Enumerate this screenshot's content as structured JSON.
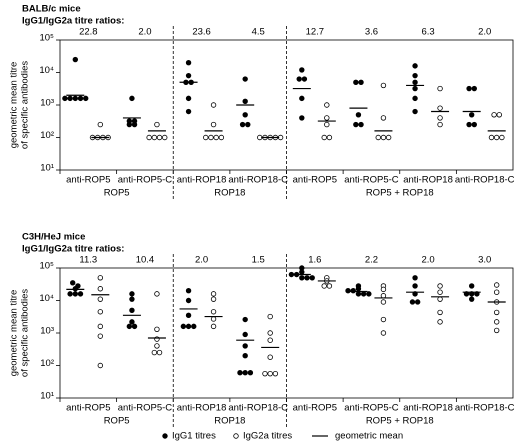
{
  "chart_data": [
    {
      "type": "dot",
      "title": "BALB/c mice",
      "ratio_title": "IgG1/IgG2a titre ratios:",
      "ratios": [
        "22.8",
        "2.0",
        "23.6",
        "4.5",
        "12.7",
        "3.6",
        "6.3",
        "2.0"
      ],
      "ylabel": [
        "geometric mean titre",
        "of specific antibodies"
      ],
      "groups": [
        {
          "name": "ROP5",
          "categories": [
            "anti-ROP5",
            "anti-ROP5-C"
          ]
        },
        {
          "name": "ROP18",
          "categories": [
            "anti-ROP18",
            "anti-ROP18-C"
          ]
        },
        {
          "name": "ROP5 + ROP18",
          "categories": [
            "anti-ROP5",
            "anti-ROP5-C",
            "anti-ROP18",
            "anti-ROP18-C"
          ]
        }
      ],
      "log_y": true,
      "ylim": [
        10,
        100000
      ],
      "yticks": [
        {
          "value": 10,
          "label": "10¹"
        },
        {
          "value": 100,
          "label": "10²"
        },
        {
          "value": 1000,
          "label": "10³"
        },
        {
          "value": 10000,
          "label": "10⁴"
        },
        {
          "value": 100000,
          "label": "10⁵"
        }
      ],
      "series": [
        {
          "name": "IgG1 titres",
          "marker": "filled",
          "color": "#000000",
          "values": [
            [
              25000,
              1600,
              1600,
              1600,
              1600,
              1600
            ],
            [
              1600,
              320,
              320,
              250,
              250
            ],
            [
              20000,
              8000,
              5000,
              5000,
              1600,
              630
            ],
            [
              6300,
              1300,
              500,
              250,
              250
            ],
            [
              12000,
              6300,
              6300,
              1600,
              400
            ],
            [
              5000,
              5000,
              500,
              250,
              250
            ],
            [
              16000,
              8000,
              5000,
              3200,
              1600,
              630
            ],
            [
              3200,
              3200,
              500,
              250,
              250
            ]
          ],
          "means": [
            2000,
            400,
            5000,
            1000,
            3200,
            800,
            4000,
            630
          ]
        },
        {
          "name": "IgG2a titres",
          "marker": "open",
          "color": "#000000",
          "values": [
            [
              250,
              100,
              100,
              100,
              100
            ],
            [
              250,
              100,
              100,
              100,
              100
            ],
            [
              1000,
              250,
              100,
              100,
              100,
              100
            ],
            [
              100,
              100,
              100,
              100,
              100
            ],
            [
              1000,
              400,
              250,
              100,
              100
            ],
            [
              4000,
              400,
              100,
              100,
              100
            ],
            [
              3200,
              800,
              400,
              250
            ],
            [
              500,
              500,
              100,
              100,
              100
            ]
          ],
          "means": [
            100,
            160,
            160,
            100,
            320,
            160,
            630,
            160
          ]
        }
      ],
      "mean_label": "geometric mean"
    },
    {
      "type": "dot",
      "title": "C3H/HeJ mice",
      "ratio_title": "IgG1/IgG2a titre ratios:",
      "ratios": [
        "11.3",
        "10.4",
        "2.0",
        "1.5",
        "1.6",
        "2.2",
        "2.0",
        "3.0"
      ],
      "ylabel": [
        "geometric mean titre",
        "of specific antibodies"
      ],
      "groups": [
        {
          "name": "ROP5",
          "categories": [
            "anti-ROP5",
            "anti-ROP5-C"
          ]
        },
        {
          "name": "ROP18",
          "categories": [
            "anti-ROP18",
            "anti-ROP18-C"
          ]
        },
        {
          "name": "ROP5 + ROP18",
          "categories": [
            "anti-ROP5",
            "anti-ROP5-C",
            "anti-ROP18",
            "anti-ROP18-C"
          ]
        }
      ],
      "log_y": true,
      "ylim": [
        10,
        100000
      ],
      "yticks": [
        {
          "value": 10,
          "label": "10¹"
        },
        {
          "value": 100,
          "label": "10²"
        },
        {
          "value": 1000,
          "label": "10³"
        },
        {
          "value": 10000,
          "label": "10⁴"
        },
        {
          "value": 100000,
          "label": "10⁵"
        }
      ],
      "series": [
        {
          "marker": "filled",
          "color": "#000000",
          "values": [
            [
              35000,
              28000,
              23000,
              16000,
              16000,
              16000
            ],
            [
              16000,
              11000,
              5000,
              2200,
              1600,
              1600
            ],
            [
              20000,
              10000,
              3500,
              1600,
              1600,
              1600
            ],
            [
              2600,
              900,
              400,
              200,
              60,
              60,
              60
            ],
            [
              100000,
              75000,
              63000,
              63000,
              50000,
              50000,
              50000
            ],
            [
              28000,
              23000,
              20000,
              20000,
              16000,
              16000,
              16000
            ],
            [
              50000,
              28000,
              16000,
              9000,
              9000
            ],
            [
              28000,
              16000,
              16000,
              16000,
              11000
            ]
          ],
          "means": [
            22000,
            3500,
            5500,
            600,
            63000,
            19000,
            18000,
            18000
          ]
        },
        {
          "marker": "open",
          "color": "#000000",
          "values": [
            [
              50000,
              23000,
              11000,
              4500,
              1600,
              800,
              100
            ],
            [
              16000,
              1300,
              650,
              400,
              250,
              250
            ],
            [
              16000,
              11000,
              4500,
              2700,
              1600
            ],
            [
              3200,
              1000,
              600,
              180,
              56,
              56,
              56
            ],
            [
              50000,
              40000,
              28000,
              28000
            ],
            [
              28000,
              22000,
              14000,
              9000,
              2600,
              1000
            ],
            [
              28000,
              18000,
              11000,
              4300,
              2200
            ],
            [
              30000,
              18000,
              9000,
              4300,
              2200,
              1200
            ]
          ],
          "means": [
            15000,
            700,
            3200,
            360,
            40000,
            12000,
            13000,
            9000
          ]
        }
      ]
    }
  ]
}
